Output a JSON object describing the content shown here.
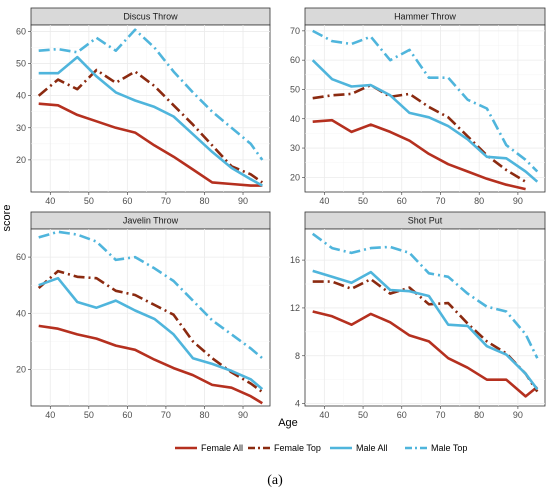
{
  "chart_data": {
    "type": "line",
    "xlabel": "Age",
    "ylabel": "score",
    "caption": "(a)",
    "grid": true,
    "legend_position": "bottom",
    "legend": [
      {
        "name": "Female All",
        "color": "#b5301f",
        "dash": "solid"
      },
      {
        "name": "Female Top",
        "color": "#8b2a10",
        "dash": "dashdot"
      },
      {
        "name": "Male All",
        "color": "#4fb5dc",
        "dash": "solid"
      },
      {
        "name": "Male Top",
        "color": "#4fb5dc",
        "dash": "dashdot"
      }
    ],
    "x_ticks": [
      40,
      50,
      60,
      70,
      80,
      90
    ],
    "xlim": [
      35,
      97
    ],
    "panels": [
      {
        "title": "Discus Throw",
        "ylim": [
          10,
          62
        ],
        "y_ticks": [
          20,
          30,
          40,
          50,
          60
        ],
        "series": [
          {
            "name": "Female All",
            "x": [
              37,
              42,
              47,
              52,
              57,
              62,
              67,
              72,
              77,
              82,
              87,
              92,
              95
            ],
            "y": [
              37.5,
              37,
              34,
              32,
              30,
              28.5,
              24.5,
              21,
              17,
              13,
              12.5,
              12,
              12
            ]
          },
          {
            "name": "Female Top",
            "x": [
              37,
              42,
              47,
              52,
              57,
              62,
              67,
              72,
              77,
              82,
              87,
              92,
              95
            ],
            "y": [
              40,
              45,
              42,
              48,
              44,
              47.5,
              43,
              37,
              31,
              24.5,
              18,
              15.5,
              13
            ]
          },
          {
            "name": "Male All",
            "x": [
              37,
              42,
              47,
              52,
              57,
              62,
              67,
              72,
              77,
              82,
              87,
              92,
              95
            ],
            "y": [
              47,
              47,
              52,
              46,
              41,
              38.5,
              36.5,
              33.5,
              28,
              22.5,
              17.5,
              14,
              12
            ]
          },
          {
            "name": "Male Top",
            "x": [
              37,
              42,
              47,
              52,
              57,
              62,
              67,
              72,
              77,
              82,
              87,
              92,
              95
            ],
            "y": [
              54,
              54.5,
              53.5,
              58,
              54,
              60.5,
              55,
              47.5,
              41,
              35,
              30,
              25,
              20
            ]
          }
        ]
      },
      {
        "title": "Hammer Throw",
        "ylim": [
          15,
          72
        ],
        "y_ticks": [
          20,
          30,
          40,
          50,
          60,
          70
        ],
        "series": [
          {
            "name": "Female All",
            "x": [
              37,
              42,
              47,
              52,
              57,
              62,
              67,
              72,
              77,
              82,
              87,
              92
            ],
            "y": [
              39,
              39.5,
              35.5,
              38,
              35.5,
              32.5,
              28,
              24.5,
              22,
              19.5,
              17.5,
              16
            ]
          },
          {
            "name": "Female Top",
            "x": [
              37,
              42,
              47,
              52,
              57,
              62,
              67,
              72,
              77,
              82,
              87,
              92
            ],
            "y": [
              47,
              48,
              48.5,
              51.5,
              47.5,
              48.5,
              44,
              40.5,
              34,
              27.5,
              22.5,
              18.5
            ]
          },
          {
            "name": "Male All",
            "x": [
              37,
              42,
              47,
              52,
              57,
              62,
              67,
              72,
              77,
              82,
              87,
              92,
              95
            ],
            "y": [
              60,
              53.5,
              51,
              51.5,
              48,
              42,
              40.5,
              37.5,
              33,
              27,
              26.5,
              22,
              18.5
            ]
          },
          {
            "name": "Male Top",
            "x": [
              37,
              42,
              47,
              52,
              57,
              62,
              67,
              72,
              77,
              82,
              87,
              92,
              95
            ],
            "y": [
              70,
              66.5,
              65.5,
              68,
              60,
              63.5,
              54,
              54,
              46.5,
              43.5,
              31,
              26,
              22
            ]
          }
        ]
      },
      {
        "title": "Javelin Throw",
        "ylim": [
          7,
          70
        ],
        "y_ticks": [
          20,
          40,
          60
        ],
        "series": [
          {
            "name": "Female All",
            "x": [
              37,
              42,
              47,
              52,
              57,
              62,
              67,
              72,
              77,
              82,
              87,
              92,
              95
            ],
            "y": [
              35.5,
              34.5,
              32.5,
              31,
              28.5,
              27,
              23.5,
              20.5,
              18,
              14.5,
              13.5,
              10.5,
              8
            ]
          },
          {
            "name": "Female Top",
            "x": [
              37,
              42,
              47,
              52,
              57,
              62,
              67,
              72,
              77,
              82,
              87,
              92,
              95
            ],
            "y": [
              49,
              55,
              53,
              52.5,
              48,
              46.5,
              43,
              39.5,
              30,
              24,
              19,
              15,
              12
            ]
          },
          {
            "name": "Male All",
            "x": [
              37,
              42,
              47,
              52,
              57,
              62,
              67,
              72,
              77,
              82,
              87,
              92,
              95
            ],
            "y": [
              50,
              52.5,
              44,
              42,
              44.5,
              41,
              38,
              32.5,
              24,
              22,
              19.5,
              16.5,
              13
            ]
          },
          {
            "name": "Male Top",
            "x": [
              37,
              42,
              47,
              52,
              57,
              62,
              67,
              72,
              77,
              82,
              87,
              92,
              95
            ],
            "y": [
              67,
              69,
              68,
              65.5,
              59,
              60,
              56,
              51.5,
              44.5,
              37.5,
              32.5,
              27.5,
              24
            ]
          }
        ]
      },
      {
        "title": "Shot Put",
        "ylim": [
          3.8,
          18.6
        ],
        "y_ticks": [
          4,
          8,
          12,
          16
        ],
        "series": [
          {
            "name": "Female All",
            "x": [
              37,
              42,
              47,
              52,
              57,
              62,
              67,
              72,
              77,
              82,
              87,
              92,
              95
            ],
            "y": [
              11.7,
              11.3,
              10.6,
              11.5,
              10.8,
              9.7,
              9.2,
              7.8,
              7,
              6,
              6,
              4.6,
              5.4
            ]
          },
          {
            "name": "Female Top",
            "x": [
              37,
              42,
              47,
              52,
              57,
              62,
              67,
              72,
              77,
              82,
              87,
              92,
              95
            ],
            "y": [
              14.2,
              14.2,
              13.6,
              14.4,
              13.2,
              13.7,
              12.3,
              12.4,
              10.7,
              9.2,
              8.2,
              6.5,
              5
            ]
          },
          {
            "name": "Male All",
            "x": [
              37,
              42,
              47,
              52,
              57,
              62,
              67,
              72,
              77,
              82,
              87,
              92,
              95
            ],
            "y": [
              15.1,
              14.6,
              14.1,
              15,
              13.5,
              13.4,
              13,
              10.6,
              10.5,
              8.8,
              8.1,
              6.5,
              5.2
            ]
          },
          {
            "name": "Male Top",
            "x": [
              37,
              42,
              47,
              52,
              57,
              62,
              67,
              72,
              77,
              82,
              87,
              92,
              95
            ],
            "y": [
              18.2,
              17,
              16.6,
              17,
              17.1,
              16.6,
              14.9,
              14.6,
              13.2,
              12.1,
              11.7,
              9.8,
              7.8
            ]
          }
        ]
      }
    ]
  }
}
